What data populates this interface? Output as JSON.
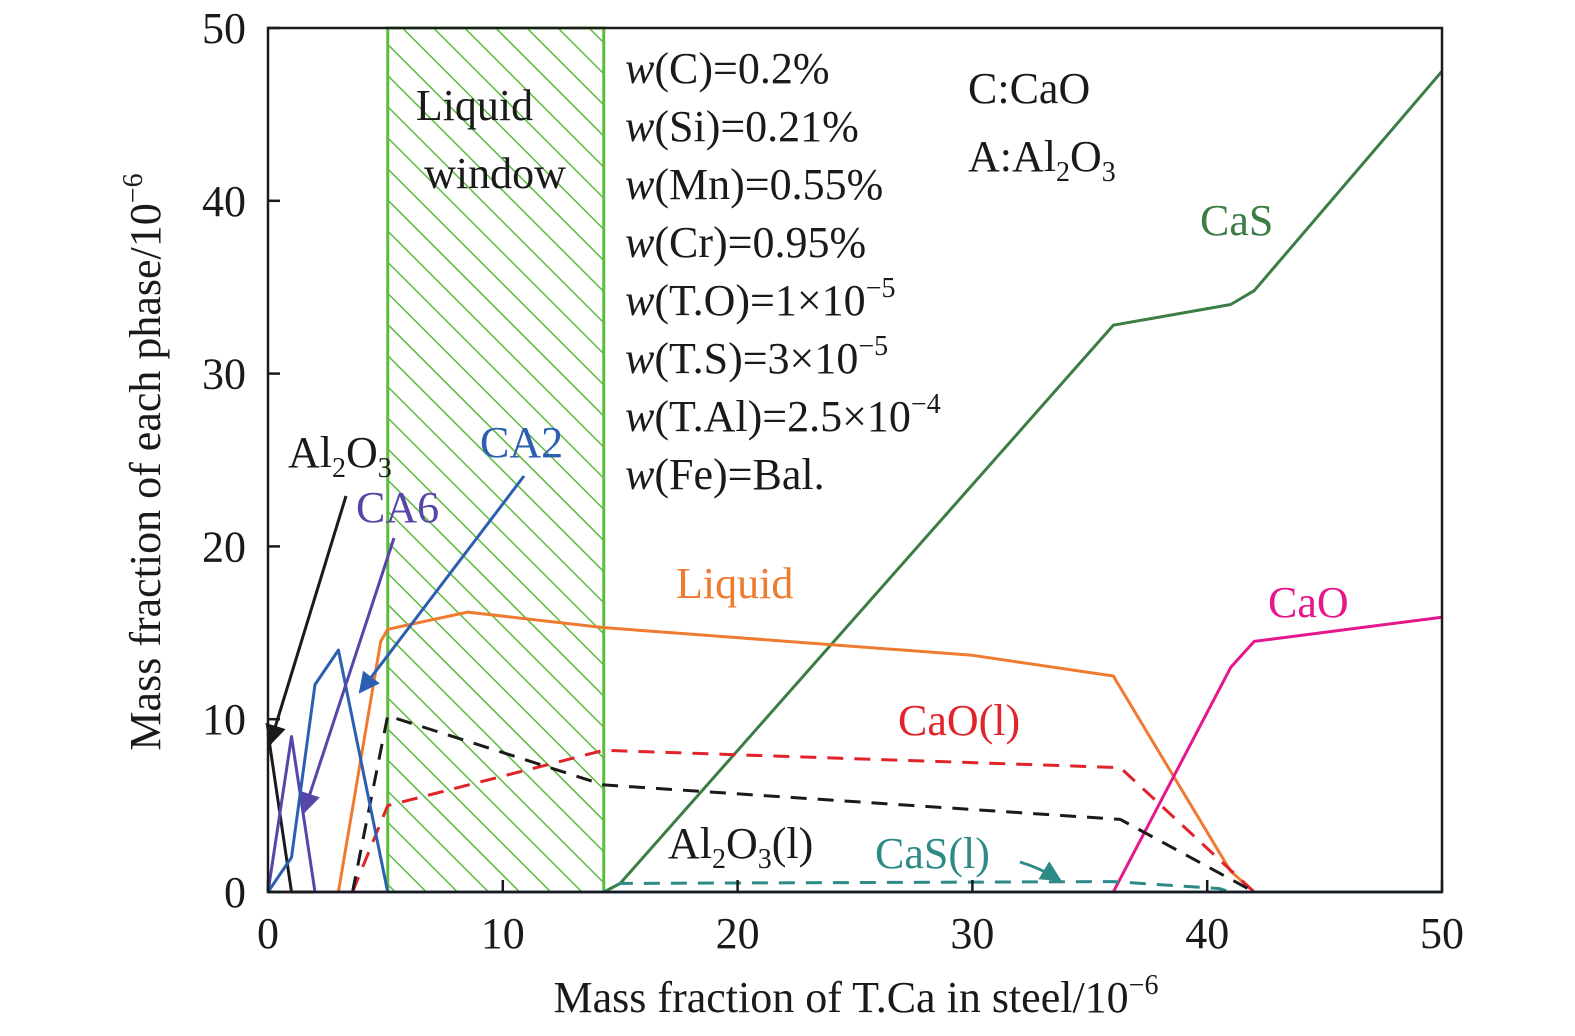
{
  "chart_data": {
    "type": "line",
    "xlabel": "Mass fraction of T.Ca in steel/10",
    "xlabel_exp": "−6",
    "ylabel": "Mass fraction of each phase/10",
    "ylabel_exp": "−6",
    "xlim": [
      0,
      50
    ],
    "ylim": [
      0,
      50
    ],
    "xticks": [
      0,
      10,
      20,
      30,
      40,
      50
    ],
    "yticks": [
      0,
      10,
      20,
      30,
      40,
      50
    ],
    "grid": false,
    "liquid_window": {
      "x_range": [
        5.1,
        14.3
      ],
      "label_line1": "Liquid",
      "label_line2": "window",
      "color": "#5dbb3d"
    },
    "composition": [
      {
        "pre": "w",
        "el": "(C)=0.2%",
        "exp": ""
      },
      {
        "pre": "w",
        "el": "(Si)=0.21%",
        "exp": ""
      },
      {
        "pre": "w",
        "el": "(Mn)=0.55%",
        "exp": ""
      },
      {
        "pre": "w",
        "el": "(Cr)=0.95%",
        "exp": ""
      },
      {
        "pre": "w",
        "el": "(T.O)=1×10",
        "exp": "−5"
      },
      {
        "pre": "w",
        "el": "(T.S)=3×10",
        "exp": "−5"
      },
      {
        "pre": "w",
        "el": "(T.Al)=2.5×10",
        "exp": "−4"
      },
      {
        "pre": "w",
        "el": "(Fe)=Bal.",
        "exp": ""
      }
    ],
    "legend_key": {
      "line1": "C:CaO",
      "line2_pre": "A:Al",
      "line2_sub1": "2",
      "line2_mid": "O",
      "line2_sub2": "3"
    },
    "series": [
      {
        "name": "CaS",
        "color": "#3b7d45",
        "dash": false,
        "x": [
          0,
          14.3,
          15,
          36,
          41,
          42,
          50
        ],
        "y": [
          0,
          0,
          0.5,
          32.8,
          34,
          34.8,
          47.5
        ]
      },
      {
        "name": "Liquid",
        "color": "#ee7b30",
        "dash": false,
        "x": [
          3,
          4.8,
          5.1,
          8.5,
          14.3,
          30,
          36,
          41,
          42,
          50
        ],
        "y": [
          0,
          14.5,
          15.2,
          16.2,
          15.3,
          13.7,
          12.5,
          1.2,
          0,
          0
        ]
      },
      {
        "name": "CaO",
        "color": "#e6178c",
        "dash": false,
        "x": [
          0,
          36,
          41,
          42,
          50
        ],
        "y": [
          0,
          0,
          13,
          14.5,
          15.9
        ]
      },
      {
        "name": "CaO(l)",
        "color": "#e0242a",
        "dash": true,
        "x": [
          3.6,
          5.1,
          14.3,
          36.3,
          42,
          50
        ],
        "y": [
          0,
          5,
          8.2,
          7.2,
          0,
          0
        ]
      },
      {
        "name": "Al2O3(l)",
        "color": "#1a1a1a",
        "dash": true,
        "x": [
          3.6,
          5.1,
          14.3,
          36.3,
          42,
          50
        ],
        "y": [
          0,
          10.2,
          6.2,
          4.2,
          0,
          0
        ]
      },
      {
        "name": "CaS(l)",
        "color": "#2d8a87",
        "dash": true,
        "x": [
          0,
          14.3,
          15,
          36,
          40.5,
          41,
          50
        ],
        "y": [
          0,
          0,
          0.5,
          0.6,
          0.2,
          0,
          0
        ]
      },
      {
        "name": "Al2O3",
        "color": "#1a1a1a",
        "dash": false,
        "x": [
          0,
          1,
          50
        ],
        "y": [
          9.2,
          0,
          0
        ]
      },
      {
        "name": "CA6",
        "color": "#5447a8",
        "dash": false,
        "x": [
          0,
          1,
          2,
          50
        ],
        "y": [
          0,
          9,
          0,
          0
        ]
      },
      {
        "name": "CA2",
        "color": "#2d5fb0",
        "dash": false,
        "x": [
          0,
          1,
          2,
          3,
          5.1,
          50
        ],
        "y": [
          0,
          2,
          12,
          14,
          0,
          0
        ]
      }
    ],
    "labels": {
      "cas": "CaS",
      "liquid": "Liquid",
      "cao": "CaO",
      "caol": "CaO(l)",
      "casl": "CaS(l)",
      "al2o3l_pre": "Al",
      "al2o3l_sub1": "2",
      "al2o3l_mid": "O",
      "al2o3l_sub2": "3",
      "al2o3l_post": "(l)",
      "al2o3_pre": "Al",
      "al2o3_sub1": "2",
      "al2o3_mid": "O",
      "al2o3_sub2": "3",
      "ca6": "CA6",
      "ca2": "CA2"
    },
    "colors": {
      "cas": "#3b7d45",
      "liquid": "#ee7b30",
      "cao": "#e6178c",
      "caol": "#e0242a",
      "casl": "#2d8a87",
      "ca6": "#5447a8",
      "ca2": "#2d5fb0",
      "black": "#1a1a1a"
    }
  }
}
